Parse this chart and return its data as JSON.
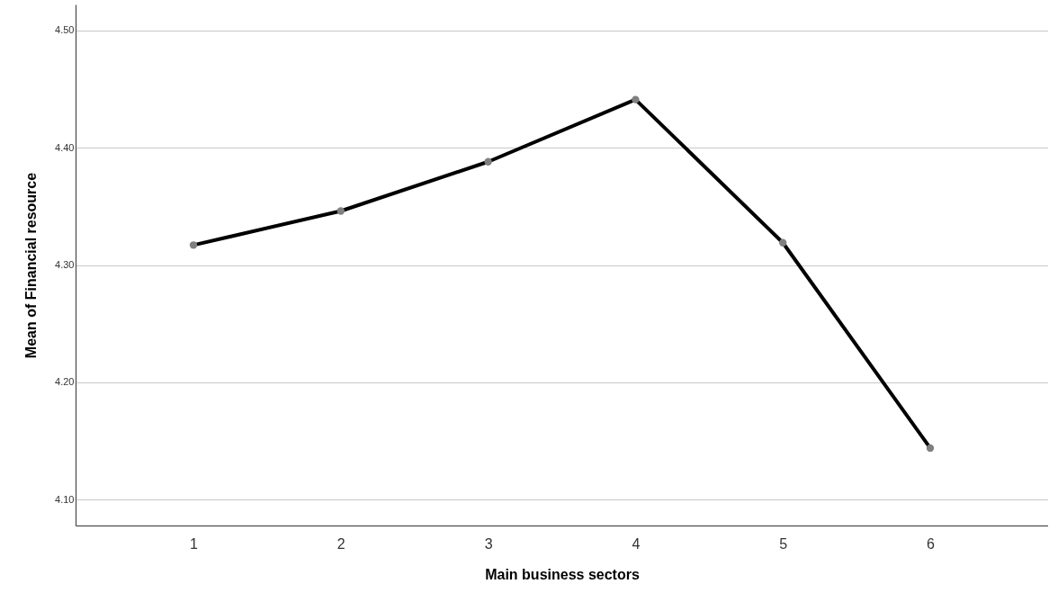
{
  "chart_data": {
    "type": "line",
    "xlabel": "Main business sectors",
    "ylabel": "Mean of Financial resource",
    "categories": [
      "1",
      "2",
      "3",
      "4",
      "5",
      "6"
    ],
    "series": [
      {
        "color": "#000000",
        "values": [
          4.317,
          4.346,
          4.388,
          4.441,
          4.319,
          4.144
        ]
      }
    ],
    "ylim": [
      4.078,
      4.522
    ],
    "yticks": [
      {
        "value": 4.1,
        "label": "4.10"
      },
      {
        "value": 4.2,
        "label": "4.20"
      },
      {
        "value": 4.3,
        "label": "4.30"
      },
      {
        "value": 4.4,
        "label": "4.40"
      },
      {
        "value": 4.5,
        "label": "4.50"
      }
    ],
    "grid": "y",
    "marker": "circle",
    "line_style": "solid"
  }
}
